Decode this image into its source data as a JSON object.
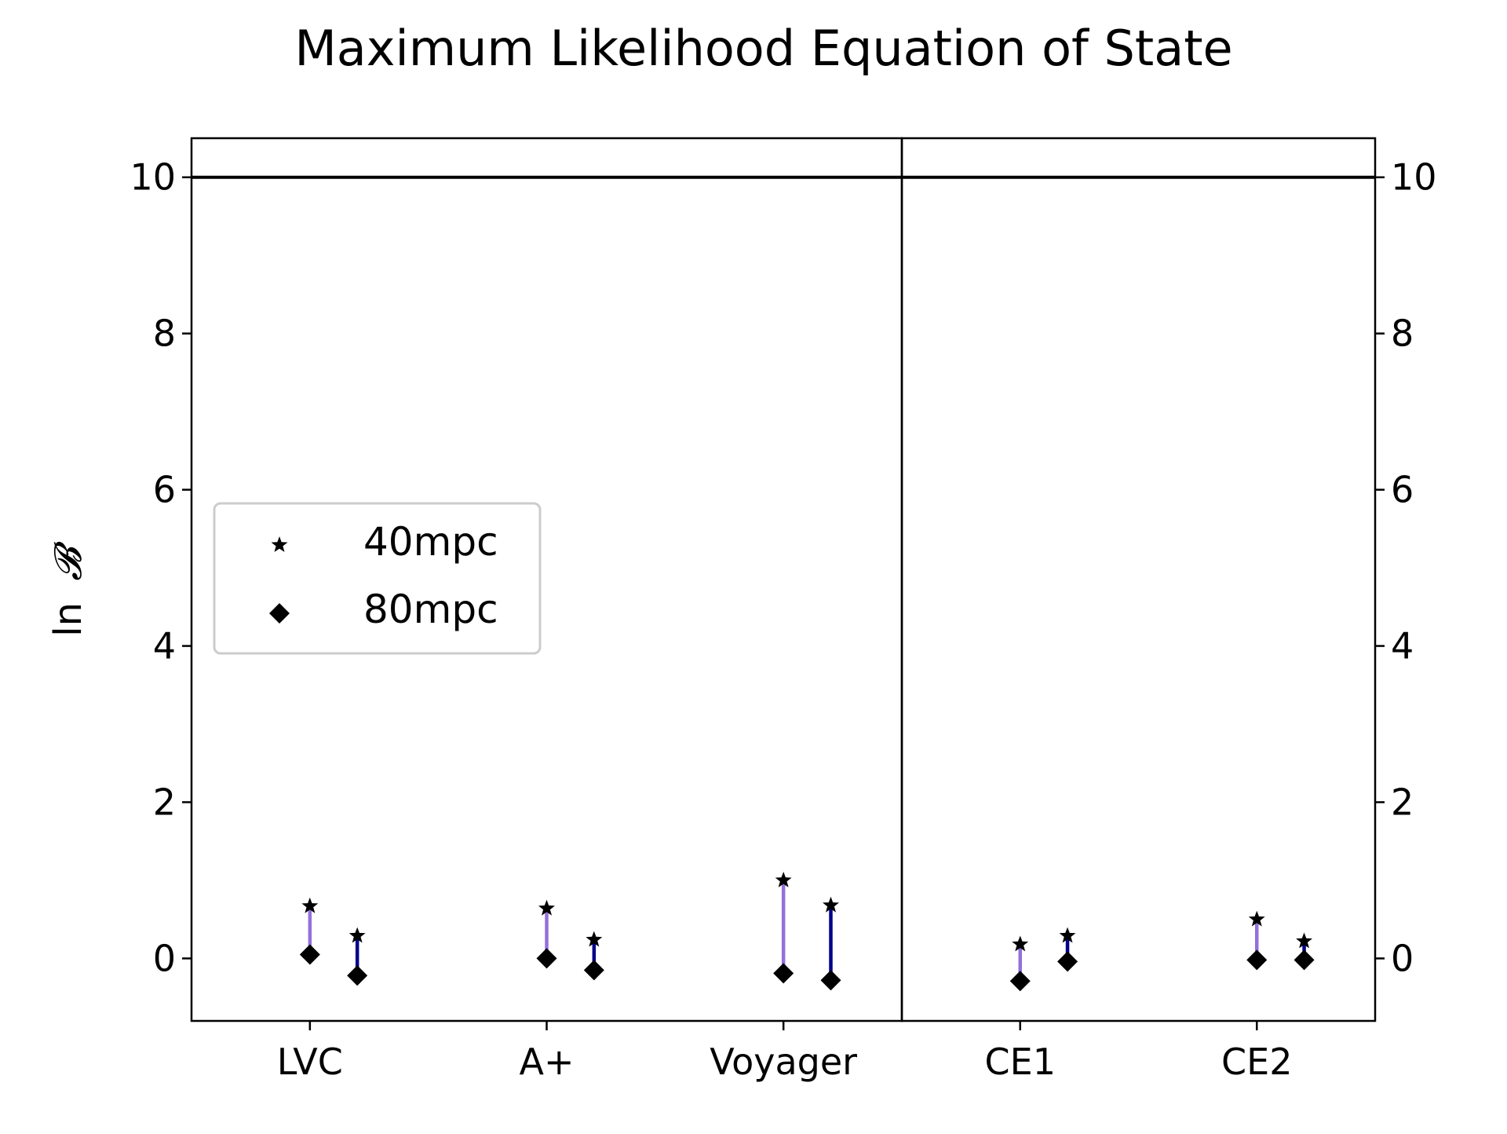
{
  "chart_data": {
    "type": "scatter",
    "title": "Maximum Likelihood Equation of State",
    "ylabel": "ln",
    "ylabel_symbol": "𝓑",
    "xlabel": "",
    "categories": [
      "LVC",
      "A+",
      "Voyager",
      "CE1",
      "CE2"
    ],
    "ylim": [
      -0.8,
      10.5
    ],
    "yticks": [
      0,
      2,
      4,
      6,
      8,
      10
    ],
    "reference_line_y": 10,
    "legend_placement": "center-left",
    "legend": [
      {
        "label": "40mpc",
        "marker": "star"
      },
      {
        "label": "80mpc",
        "marker": "diamond"
      }
    ],
    "colors": {
      "left_stem": "#9370DB",
      "right_stem": "#00008B",
      "marker": "#000000",
      "axis": "#000000"
    },
    "panels": [
      {
        "categories": [
          "LVC",
          "A+",
          "Voyager"
        ],
        "xlim": [
          -0.5,
          2.5
        ]
      },
      {
        "categories": [
          "CE1",
          "CE2"
        ],
        "xlim": [
          -0.5,
          1.5
        ]
      }
    ],
    "series": [
      {
        "name": "40mpc",
        "marker": "star",
        "left": [
          0.67,
          0.64,
          1.0,
          0.18,
          0.5
        ],
        "right": [
          0.29,
          0.24,
          0.68,
          0.29,
          0.22
        ]
      },
      {
        "name": "80mpc",
        "marker": "diamond",
        "left": [
          0.05,
          0.0,
          -0.19,
          -0.29,
          -0.02
        ],
        "right": [
          -0.22,
          -0.15,
          -0.28,
          -0.04,
          -0.02
        ]
      }
    ]
  }
}
